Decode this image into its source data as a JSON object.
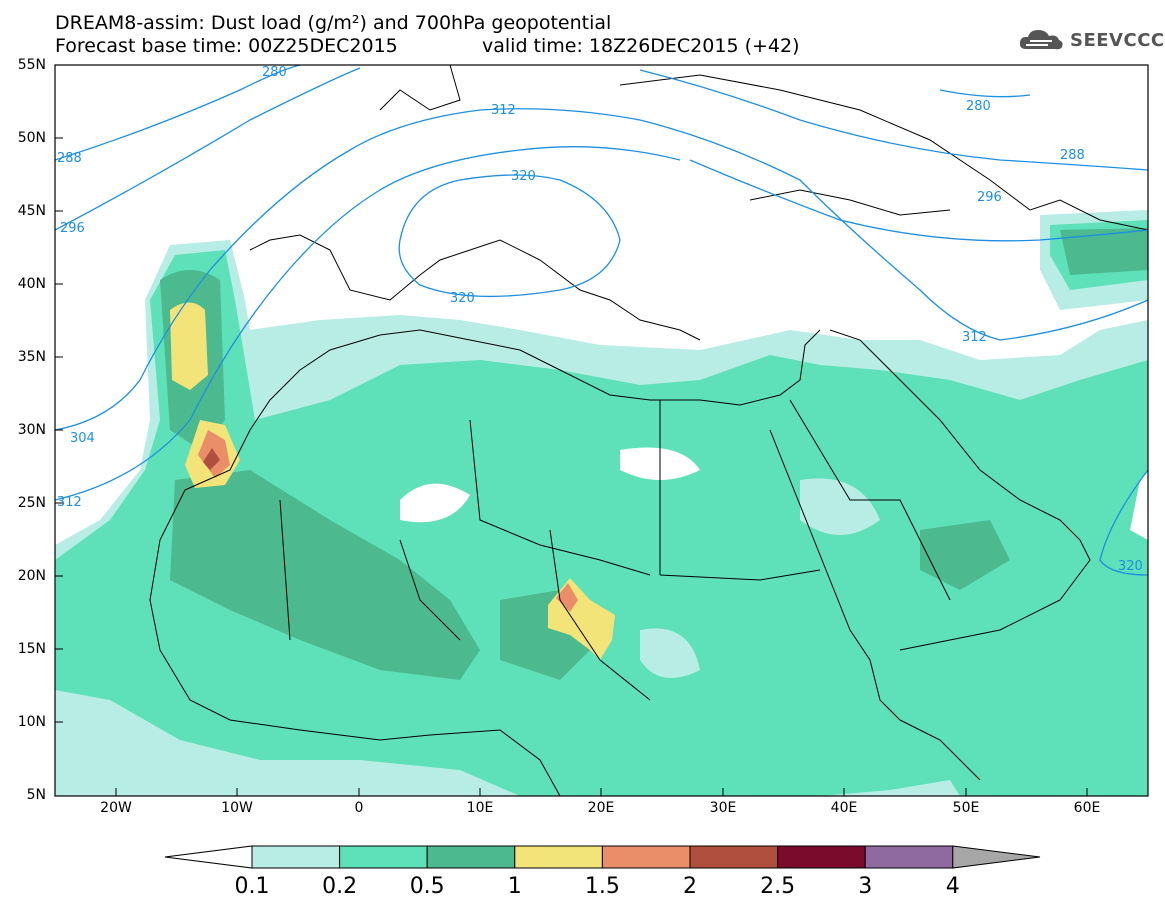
{
  "title": {
    "line1": "DREAM8-assim: Dust load (g/m²) and 700hPa geopotential",
    "line2_left": "Forecast base time: 00Z25DEC2015",
    "line2_right": "valid time: 18Z26DEC2015 (+42)"
  },
  "logo": {
    "text": "SEEVCCC",
    "icon": "cloud-icon"
  },
  "map": {
    "lat_labels": [
      "55N",
      "50N",
      "45N",
      "40N",
      "35N",
      "30N",
      "25N",
      "20N",
      "15N",
      "10N",
      "5N"
    ],
    "lon_labels": [
      "20W",
      "10W",
      "0",
      "10E",
      "20E",
      "30E",
      "40E",
      "50E",
      "60E"
    ],
    "contour_labels": [
      "280",
      "312",
      "320",
      "288",
      "296",
      "320",
      "312",
      "304",
      "312",
      "320",
      "280",
      "288",
      "296"
    ]
  },
  "colorbar": {
    "labels": [
      "0.1",
      "0.2",
      "0.5",
      "1",
      "1.5",
      "2",
      "2.5",
      "3",
      "4"
    ],
    "colors": [
      "#b7ede5",
      "#5ee0b8",
      "#4cb98f",
      "#f3e47a",
      "#e98e68",
      "#b04f3e",
      "#7a0b2d",
      "#8f6aa0",
      "#a7a7a7"
    ]
  }
}
